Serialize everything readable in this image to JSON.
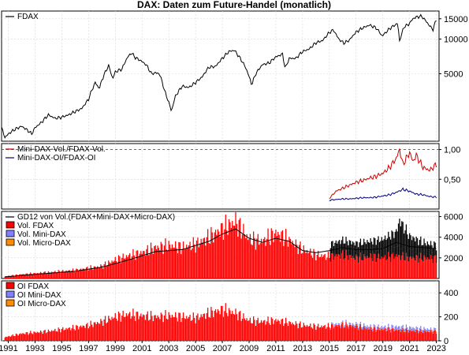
{
  "chart_data": {
    "title": "DAX: Daten zum Future-Handel (monatlich)",
    "x_axis": {
      "type": "time",
      "range": [
        1990.5,
        2023.2
      ],
      "ticks": [
        "1991",
        "1993",
        "1995",
        "1997",
        "1999",
        "2001",
        "2003",
        "2005",
        "2007",
        "2009",
        "2011",
        "2013",
        "2015",
        "2017",
        "2019",
        "2021",
        "2023"
      ],
      "tick_values": [
        1991,
        1993,
        1995,
        1997,
        1999,
        2001,
        2003,
        2005,
        2007,
        2009,
        2011,
        2013,
        2015,
        2017,
        2019,
        2021,
        2023
      ]
    },
    "panels": [
      {
        "id": "price",
        "type": "line",
        "scale": "log",
        "ylim": [
          1300,
          17500
        ],
        "yticks": [
          "15000",
          "10000",
          "5000"
        ],
        "ytick_values": [
          15000,
          10000,
          5000
        ],
        "legend": [
          {
            "name": "FDAX",
            "color": "#000000"
          }
        ],
        "series": [
          {
            "name": "FDAX",
            "t": [
              1990.5,
              1990.75,
              1991,
              1991.5,
              1992,
              1992.5,
              1992.75,
              1993,
              1993.5,
              1994,
              1994.5,
              1995,
              1995.5,
              1996,
              1996.5,
              1997,
              1997.5,
              1997.8,
              1998,
              1998.5,
              1998.8,
              1999,
              1999.5,
              1999.9,
              2000.2,
              2000.5,
              2000.9,
              2001.3,
              2001.7,
              2002,
              2002.3,
              2002.7,
              2003.2,
              2003.5,
              2004,
              2004.5,
              2005,
              2005.5,
              2006,
              2006.5,
              2007,
              2007.5,
              2007.9,
              2008.3,
              2008.7,
              2009.2,
              2009.5,
              2010,
              2010.5,
              2011,
              2011.5,
              2011.7,
              2012,
              2012.5,
              2013,
              2013.5,
              2014,
              2014.5,
              2015,
              2015.3,
              2015.7,
              2016.1,
              2016.5,
              2017,
              2017.5,
              2018,
              2018.5,
              2018.95,
              2019.5,
              2020.1,
              2020.25,
              2020.6,
              2020.9,
              2021.3,
              2021.6,
              2021.9,
              2022.2,
              2022.5,
              2022.75,
              2023.0
            ],
            "v": [
              1700,
              1400,
              1500,
              1650,
              1750,
              1600,
              1500,
              1700,
              1900,
              2200,
              2050,
              2100,
              2200,
              2350,
              2500,
              3000,
              4200,
              3700,
              4400,
              5900,
              4500,
              5200,
              5500,
              6900,
              7600,
              6900,
              6500,
              6000,
              5000,
              5100,
              5000,
              3500,
              2350,
              3200,
              3900,
              3800,
              4200,
              4700,
              5700,
              5800,
              6800,
              7800,
              8000,
              6900,
              5800,
              4000,
              5000,
              6000,
              6200,
              7000,
              7400,
              5500,
              6800,
              6800,
              7800,
              8200,
              9300,
              9700,
              11400,
              12000,
              10000,
              9200,
              9800,
              11500,
              12500,
              13200,
              12500,
              10600,
              12300,
              13700,
              9600,
              12900,
              13300,
              15200,
              15600,
              15800,
              14400,
              13000,
              12100,
              14800
            ]
          }
        ]
      },
      {
        "id": "ratios",
        "type": "line",
        "scale": "linear",
        "ylim": [
          0,
          1.1
        ],
        "yticks": [
          "1,00",
          "0,50"
        ],
        "ytick_values": [
          1.0,
          0.5
        ],
        "reference_line": 1.0,
        "legend": [
          {
            "name": "Mini-DAX-Vol./FDAX-Vol.",
            "color": "#cc0000"
          },
          {
            "name": "Mini-DAX-OI/FDAX-OI",
            "color": "#000080"
          }
        ],
        "series": [
          {
            "name": "Mini-DAX-Vol./FDAX-Vol.",
            "t": [
              2015.0,
              2015.5,
              2016.0,
              2016.5,
              2017.0,
              2017.5,
              2018.0,
              2018.5,
              2019.0,
              2019.5,
              2020.0,
              2020.25,
              2020.5,
              2021.0,
              2021.25,
              2021.5,
              2022.0,
              2022.5,
              2023.0
            ],
            "v": [
              0.18,
              0.3,
              0.35,
              0.4,
              0.45,
              0.48,
              0.52,
              0.55,
              0.6,
              0.7,
              0.85,
              1.0,
              0.75,
              0.95,
              0.8,
              0.9,
              0.7,
              0.65,
              0.75
            ]
          },
          {
            "name": "Mini-DAX-OI/FDAX-OI",
            "t": [
              2015.0,
              2015.5,
              2016.0,
              2016.5,
              2017.0,
              2017.5,
              2018.0,
              2018.5,
              2019.0,
              2019.5,
              2020.0,
              2020.5,
              2021.0,
              2021.5,
              2022.0,
              2022.5,
              2023.0
            ],
            "v": [
              0.15,
              0.16,
              0.17,
              0.17,
              0.18,
              0.19,
              0.19,
              0.2,
              0.22,
              0.24,
              0.28,
              0.33,
              0.3,
              0.25,
              0.24,
              0.21,
              0.2
            ]
          }
        ]
      },
      {
        "id": "volume",
        "type": "stacked_bar_with_line",
        "scale": "linear",
        "ylim": [
          0,
          6500
        ],
        "yticks": [
          "6000",
          "4000",
          "2000"
        ],
        "ytick_values": [
          6000,
          4000,
          2000
        ],
        "legend": [
          {
            "name": "GD12 von Vol.(FDAX+Mini-DAX+Micro-DAX)",
            "color": "#000000",
            "kind": "line"
          },
          {
            "name": "Vol. FDAX",
            "color": "#ff0000",
            "kind": "box"
          },
          {
            "name": "Vol. Mini-DAX",
            "color": "#7f7fff",
            "kind": "box"
          },
          {
            "name": "Vol. Micro-DAX",
            "color": "#ff8c00",
            "kind": "box"
          }
        ],
        "fdax": {
          "t": [
            1990.75,
            1992,
            1994,
            1996,
            1998,
            1999,
            2000,
            2001,
            2002,
            2003,
            2004,
            2005,
            2006,
            2007,
            2008,
            2009,
            2010,
            2011,
            2012,
            2013,
            2014,
            2015,
            2016,
            2017,
            2018,
            2019,
            2020,
            2021,
            2022,
            2023
          ],
          "v": [
            200,
            400,
            600,
            800,
            1200,
            1800,
            2200,
            2500,
            3000,
            3200,
            3000,
            3300,
            4000,
            4800,
            5500,
            3800,
            3600,
            4400,
            3700,
            2800,
            2300,
            2100,
            2300,
            2000,
            2100,
            2000,
            2200,
            2000,
            2000,
            1900
          ]
        },
        "mini": {
          "t": [
            2015.0,
            2016,
            2017,
            2018,
            2019,
            2020,
            2020.25,
            2021,
            2022,
            2023
          ],
          "v": [
            400,
            500,
            600,
            700,
            900,
            1300,
            2500,
            1200,
            900,
            800
          ]
        },
        "micro": {
          "t": [
            2015.0,
            2016,
            2017,
            2018,
            2019,
            2020,
            2021,
            2022,
            2023
          ],
          "v": [
            800,
            900,
            800,
            800,
            900,
            1000,
            900,
            600,
            500
          ]
        },
        "gd12": {
          "t": [
            1990.75,
            1992,
            1994,
            1996,
            1998,
            2000,
            2002,
            2003,
            2004,
            2006,
            2007,
            2008,
            2009,
            2010,
            2011,
            2012,
            2013,
            2014,
            2015,
            2016,
            2017,
            2018,
            2019,
            2020,
            2021,
            2022,
            2023
          ],
          "v": [
            150,
            300,
            500,
            700,
            1100,
            1800,
            2600,
            2700,
            2800,
            3600,
            4300,
            4800,
            3900,
            3500,
            3900,
            3600,
            2700,
            2500,
            2700,
            3000,
            2800,
            2800,
            2900,
            3500,
            3100,
            3000,
            2900
          ]
        }
      },
      {
        "id": "open_interest",
        "type": "stacked_bar",
        "scale": "linear",
        "ylim": [
          0,
          500
        ],
        "yticks": [
          "400",
          "200",
          "0"
        ],
        "ytick_values": [
          400,
          200,
          0
        ],
        "legend": [
          {
            "name": "OI FDAX",
            "color": "#ff0000",
            "kind": "box"
          },
          {
            "name": "OI Mini-DAX",
            "color": "#7f7fff",
            "kind": "box"
          },
          {
            "name": "OI Micro-DAX",
            "color": "#ff8c00",
            "kind": "box"
          }
        ],
        "fdax": {
          "t": [
            1990.75,
            1992,
            1994,
            1996,
            1997,
            1998,
            1999,
            2000,
            2001,
            2002,
            2003,
            2004,
            2005,
            2006,
            2007,
            2008,
            2009,
            2010,
            2011,
            2012,
            2013,
            2014,
            2015,
            2016,
            2017,
            2018,
            2019,
            2020,
            2021,
            2022,
            2023
          ],
          "v": [
            30,
            60,
            80,
            110,
            130,
            160,
            200,
            220,
            210,
            200,
            210,
            200,
            190,
            230,
            260,
            230,
            170,
            160,
            170,
            150,
            130,
            120,
            120,
            130,
            120,
            100,
            95,
            90,
            85,
            80,
            75
          ]
        },
        "mini": {
          "t": [
            2015.0,
            2017,
            2019,
            2020,
            2021,
            2022,
            2023
          ],
          "v": [
            10,
            15,
            18,
            25,
            22,
            18,
            16
          ]
        },
        "micro": {
          "t": [
            2015.0,
            2017,
            2019,
            2021,
            2022,
            2023
          ],
          "v": [
            2,
            3,
            3,
            4,
            3,
            3
          ]
        }
      }
    ]
  }
}
